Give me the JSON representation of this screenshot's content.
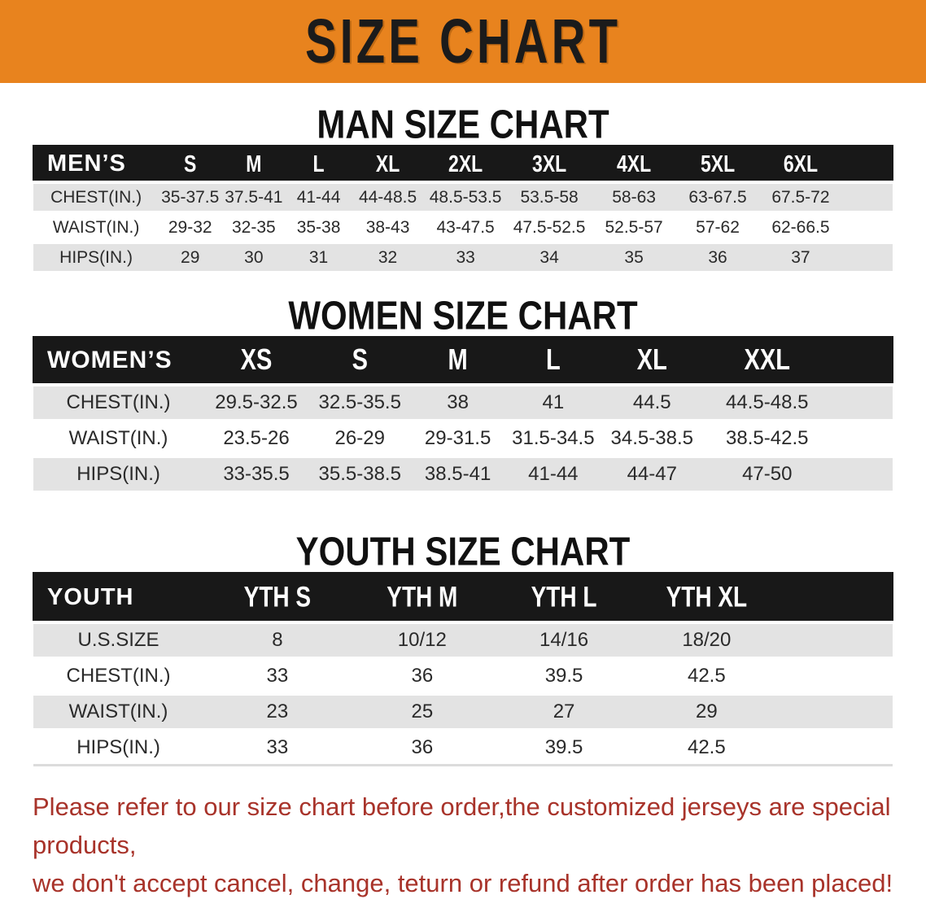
{
  "banner": {
    "title": "SIZE CHART"
  },
  "sections": [
    {
      "heading": "MAN SIZE CHART",
      "table": {
        "header_label": "MEN’S",
        "columns": [
          "S",
          "M",
          "L",
          "XL",
          "2XL",
          "3XL",
          "4XL",
          "5XL",
          "6XL"
        ],
        "rows": [
          {
            "label": "CHEST(IN.)",
            "values": [
              "35-37.5",
              "37.5-41",
              "41-44",
              "44-48.5",
              "48.5-53.5",
              "53.5-58",
              "58-63",
              "63-67.5",
              "67.5-72"
            ]
          },
          {
            "label": "WAIST(IN.)",
            "values": [
              "29-32",
              "32-35",
              "35-38",
              "38-43",
              "43-47.5",
              "47.5-52.5",
              "52.5-57",
              "57-62",
              "62-66.5"
            ]
          },
          {
            "label": "HIPS(IN.)",
            "values": [
              "29",
              "30",
              "31",
              "32",
              "33",
              "34",
              "35",
              "36",
              "37"
            ]
          }
        ]
      }
    },
    {
      "heading": "WOMEN SIZE CHART",
      "table": {
        "header_label": "WOMEN’S",
        "columns": [
          "XS",
          "S",
          "M",
          "L",
          "XL",
          "XXL"
        ],
        "rows": [
          {
            "label": "CHEST(IN.)",
            "values": [
              "29.5-32.5",
              "32.5-35.5",
              "38",
              "41",
              "44.5",
              "44.5-48.5"
            ]
          },
          {
            "label": "WAIST(IN.)",
            "values": [
              "23.5-26",
              "26-29",
              "29-31.5",
              "31.5-34.5",
              "34.5-38.5",
              "38.5-42.5"
            ]
          },
          {
            "label": "HIPS(IN.)",
            "values": [
              "33-35.5",
              "35.5-38.5",
              "38.5-41",
              "41-44",
              "44-47",
              "47-50"
            ]
          }
        ]
      }
    },
    {
      "heading": "YOUTH SIZE CHART",
      "table": {
        "header_label": "YOUTH",
        "columns": [
          "YTH S",
          "YTH M",
          "YTH L",
          "YTH XL"
        ],
        "rows": [
          {
            "label": "U.S.SIZE",
            "values": [
              "8",
              "10/12",
              "14/16",
              "18/20"
            ]
          },
          {
            "label": "CHEST(IN.)",
            "values": [
              "33",
              "36",
              "39.5",
              "42.5"
            ]
          },
          {
            "label": "WAIST(IN.)",
            "values": [
              "23",
              "25",
              "27",
              "29"
            ]
          },
          {
            "label": "HIPS(IN.)",
            "values": [
              "33",
              "36",
              "39.5",
              "42.5"
            ]
          }
        ]
      }
    }
  ],
  "disclaimer": {
    "line1": "Please refer to our size chart before order,the customized jerseys are special products,",
    "line2": "we don't accept cancel, change, teturn or refund after order has been placed!"
  },
  "colors": {
    "banner_bg": "#E8831E",
    "table_header_bg": "#181818",
    "stripe_row_bg": "#E3E3E3",
    "disclaimer_red": "#A8332A"
  }
}
